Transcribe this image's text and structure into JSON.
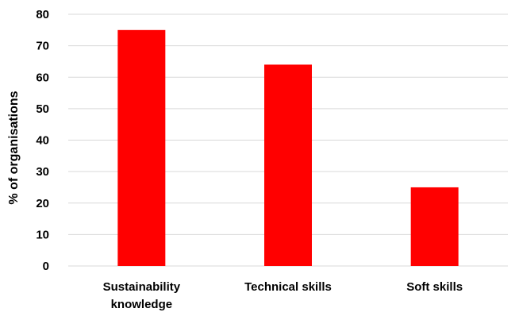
{
  "chart_data": {
    "type": "bar",
    "categories": [
      [
        "Sustainability",
        "knowledge"
      ],
      [
        "Technical skills"
      ],
      [
        "Soft skills"
      ]
    ],
    "values": [
      75,
      64,
      25
    ],
    "title": "",
    "xlabel": "",
    "ylabel": "% of organisations",
    "ylim": [
      0,
      80
    ],
    "yticks": [
      0,
      10,
      20,
      30,
      40,
      50,
      60,
      70,
      80
    ],
    "grid": true,
    "legend": "none",
    "bar_color": "#ff0000"
  }
}
